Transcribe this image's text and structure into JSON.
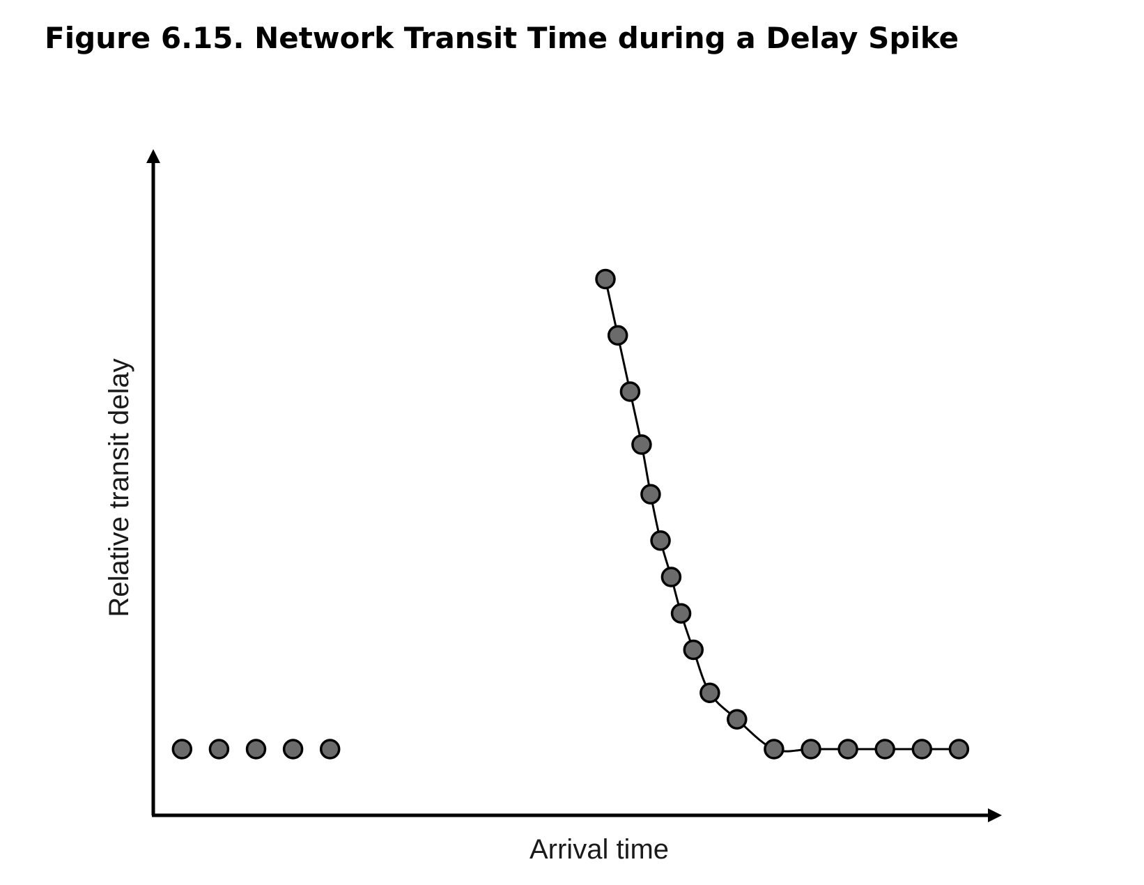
{
  "figure": {
    "title": "Figure 6.15. Network Transit Time during a Delay Spike"
  },
  "chart_data": {
    "type": "scatter",
    "title": "Figure 6.15. Network Transit Time during a Delay Spike",
    "xlabel": "Arrival time",
    "ylabel": "Relative transit delay",
    "grid": false,
    "axis_ticks": false,
    "point_color": "#6b6b6b",
    "line_color": "#000000",
    "xlim": [
      0,
      10
    ],
    "ylim": [
      0,
      10
    ],
    "series": [
      {
        "points": [
          [
            0.35,
            1.0
          ],
          [
            0.8,
            1.0
          ],
          [
            1.25,
            1.0
          ],
          [
            1.7,
            1.0
          ],
          [
            2.15,
            1.0
          ]
        ]
      },
      {
        "fitted_curve": true,
        "points": [
          [
            5.5,
            8.1
          ],
          [
            5.65,
            7.25
          ],
          [
            5.8,
            6.4
          ],
          [
            5.94,
            5.6
          ],
          [
            6.05,
            4.85
          ],
          [
            6.17,
            4.15
          ],
          [
            6.3,
            3.6
          ],
          [
            6.42,
            3.05
          ],
          [
            6.57,
            2.5
          ],
          [
            6.77,
            1.85
          ],
          [
            7.1,
            1.45
          ],
          [
            7.55,
            1.0
          ],
          [
            8.0,
            1.0
          ],
          [
            8.45,
            1.0
          ],
          [
            8.9,
            1.0
          ],
          [
            9.35,
            1.0
          ],
          [
            9.8,
            1.0
          ]
        ]
      }
    ]
  }
}
